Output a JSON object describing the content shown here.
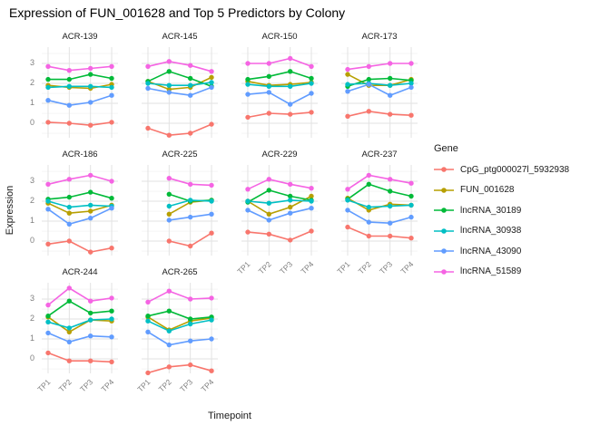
{
  "chart_data": {
    "type": "line",
    "title": "Expression of FUN_001628 and Top 5 Predictors by Colony",
    "xlabel": "Timepoint",
    "ylabel": "Expression",
    "legend_title": "Gene",
    "x": [
      "TP1",
      "TP2",
      "TP3",
      "TP4"
    ],
    "yticks": [
      3,
      2,
      1,
      0
    ],
    "ylim": [
      -0.75,
      3.8
    ],
    "grid": {
      "major_color": "#e2e2e2",
      "minor_color": "#efefef",
      "minor_breaks": [
        3.5,
        2.5,
        1.5,
        0.5,
        -0.5
      ]
    },
    "series": [
      {
        "name": "CpG_ptg000027l_5932938",
        "color": "#F8766D"
      },
      {
        "name": "FUN_001628",
        "color": "#B79F00"
      },
      {
        "name": "lncRNA_30189",
        "color": "#00BA38"
      },
      {
        "name": "lncRNA_30938",
        "color": "#00BFC4"
      },
      {
        "name": "lncRNA_43090",
        "color": "#619CFF"
      },
      {
        "name": "lncRNA_51589",
        "color": "#F564E3"
      }
    ],
    "facets": [
      {
        "colony": "ACR-139",
        "values": [
          [
            0.05,
            0.0,
            -0.1,
            0.05
          ],
          [
            1.9,
            1.8,
            1.75,
            1.95
          ],
          [
            2.2,
            2.2,
            2.45,
            2.25
          ],
          [
            1.8,
            1.85,
            1.85,
            1.8
          ],
          [
            1.15,
            0.9,
            1.05,
            1.4
          ],
          [
            2.85,
            2.65,
            2.75,
            2.85
          ]
        ]
      },
      {
        "colony": "ACR-145",
        "values": [
          [
            -0.25,
            -0.6,
            -0.5,
            -0.05
          ],
          [
            2.1,
            1.7,
            1.8,
            2.3
          ],
          [
            2.1,
            2.6,
            2.25,
            1.85
          ],
          [
            2.0,
            1.9,
            1.9,
            2.05
          ],
          [
            1.75,
            1.55,
            1.4,
            1.8
          ],
          [
            2.85,
            3.1,
            2.9,
            2.6
          ]
        ]
      },
      {
        "colony": "ACR-150",
        "values": [
          [
            0.3,
            0.5,
            0.45,
            0.55
          ],
          [
            2.1,
            1.9,
            1.95,
            2.05
          ],
          [
            2.2,
            2.35,
            2.6,
            2.25
          ],
          [
            1.95,
            1.85,
            1.85,
            2.0
          ],
          [
            1.45,
            1.55,
            0.95,
            1.5
          ],
          [
            3.0,
            3.0,
            3.25,
            2.85
          ]
        ]
      },
      {
        "colony": "ACR-173",
        "values": [
          [
            0.35,
            0.6,
            0.45,
            0.4
          ],
          [
            2.45,
            1.9,
            1.9,
            2.2
          ],
          [
            1.85,
            2.2,
            2.25,
            2.15
          ],
          [
            1.95,
            2.0,
            1.9,
            2.0
          ],
          [
            1.6,
            1.95,
            1.4,
            1.8
          ],
          [
            2.7,
            2.85,
            3.0,
            3.0
          ]
        ]
      },
      {
        "colony": "ACR-186",
        "values": [
          [
            -0.15,
            0.0,
            -0.55,
            -0.35
          ],
          [
            1.9,
            1.4,
            1.5,
            1.8
          ],
          [
            2.1,
            2.2,
            2.45,
            2.15
          ],
          [
            2.0,
            1.7,
            1.8,
            1.75
          ],
          [
            1.6,
            0.85,
            1.15,
            1.65
          ],
          [
            2.85,
            3.1,
            3.3,
            3.0
          ]
        ]
      },
      {
        "colony": "ACR-225",
        "values": [
          [
            null,
            0.0,
            -0.25,
            0.4
          ],
          [
            null,
            1.35,
            1.95,
            2.05
          ],
          [
            null,
            2.35,
            2.0,
            2.05
          ],
          [
            null,
            1.75,
            2.05,
            2.0
          ],
          [
            null,
            1.05,
            1.2,
            1.35
          ],
          [
            null,
            3.15,
            2.85,
            2.8
          ]
        ]
      },
      {
        "colony": "ACR-229",
        "values": [
          [
            0.45,
            0.35,
            0.05,
            0.5
          ],
          [
            2.0,
            1.35,
            1.7,
            2.25
          ],
          [
            1.95,
            2.55,
            2.25,
            2.05
          ],
          [
            2.0,
            1.9,
            2.05,
            2.0
          ],
          [
            1.55,
            1.05,
            1.4,
            1.65
          ],
          [
            2.6,
            3.1,
            2.85,
            2.65
          ]
        ]
      },
      {
        "colony": "ACR-237",
        "values": [
          [
            0.7,
            0.25,
            0.25,
            0.15
          ],
          [
            2.15,
            1.55,
            1.85,
            1.8
          ],
          [
            2.1,
            2.85,
            2.5,
            2.25
          ],
          [
            2.05,
            1.7,
            1.75,
            1.8
          ],
          [
            1.55,
            0.95,
            0.9,
            1.2
          ],
          [
            2.6,
            3.3,
            3.1,
            2.9
          ]
        ]
      },
      {
        "colony": "ACR-244",
        "values": [
          [
            0.3,
            -0.1,
            -0.1,
            -0.15
          ],
          [
            2.1,
            1.35,
            1.95,
            1.9
          ],
          [
            2.15,
            2.9,
            2.3,
            2.4
          ],
          [
            1.85,
            1.55,
            1.95,
            2.0
          ],
          [
            1.3,
            0.85,
            1.15,
            1.1
          ],
          [
            2.7,
            3.55,
            2.9,
            3.05
          ]
        ]
      },
      {
        "colony": "ACR-265",
        "values": [
          [
            -0.7,
            -0.4,
            -0.3,
            -0.6
          ],
          [
            2.1,
            1.45,
            1.9,
            2.05
          ],
          [
            2.15,
            2.4,
            2.0,
            2.1
          ],
          [
            1.9,
            1.4,
            1.75,
            1.95
          ],
          [
            1.35,
            0.7,
            0.9,
            1.0
          ],
          [
            2.85,
            3.4,
            3.0,
            3.05
          ]
        ]
      }
    ]
  }
}
